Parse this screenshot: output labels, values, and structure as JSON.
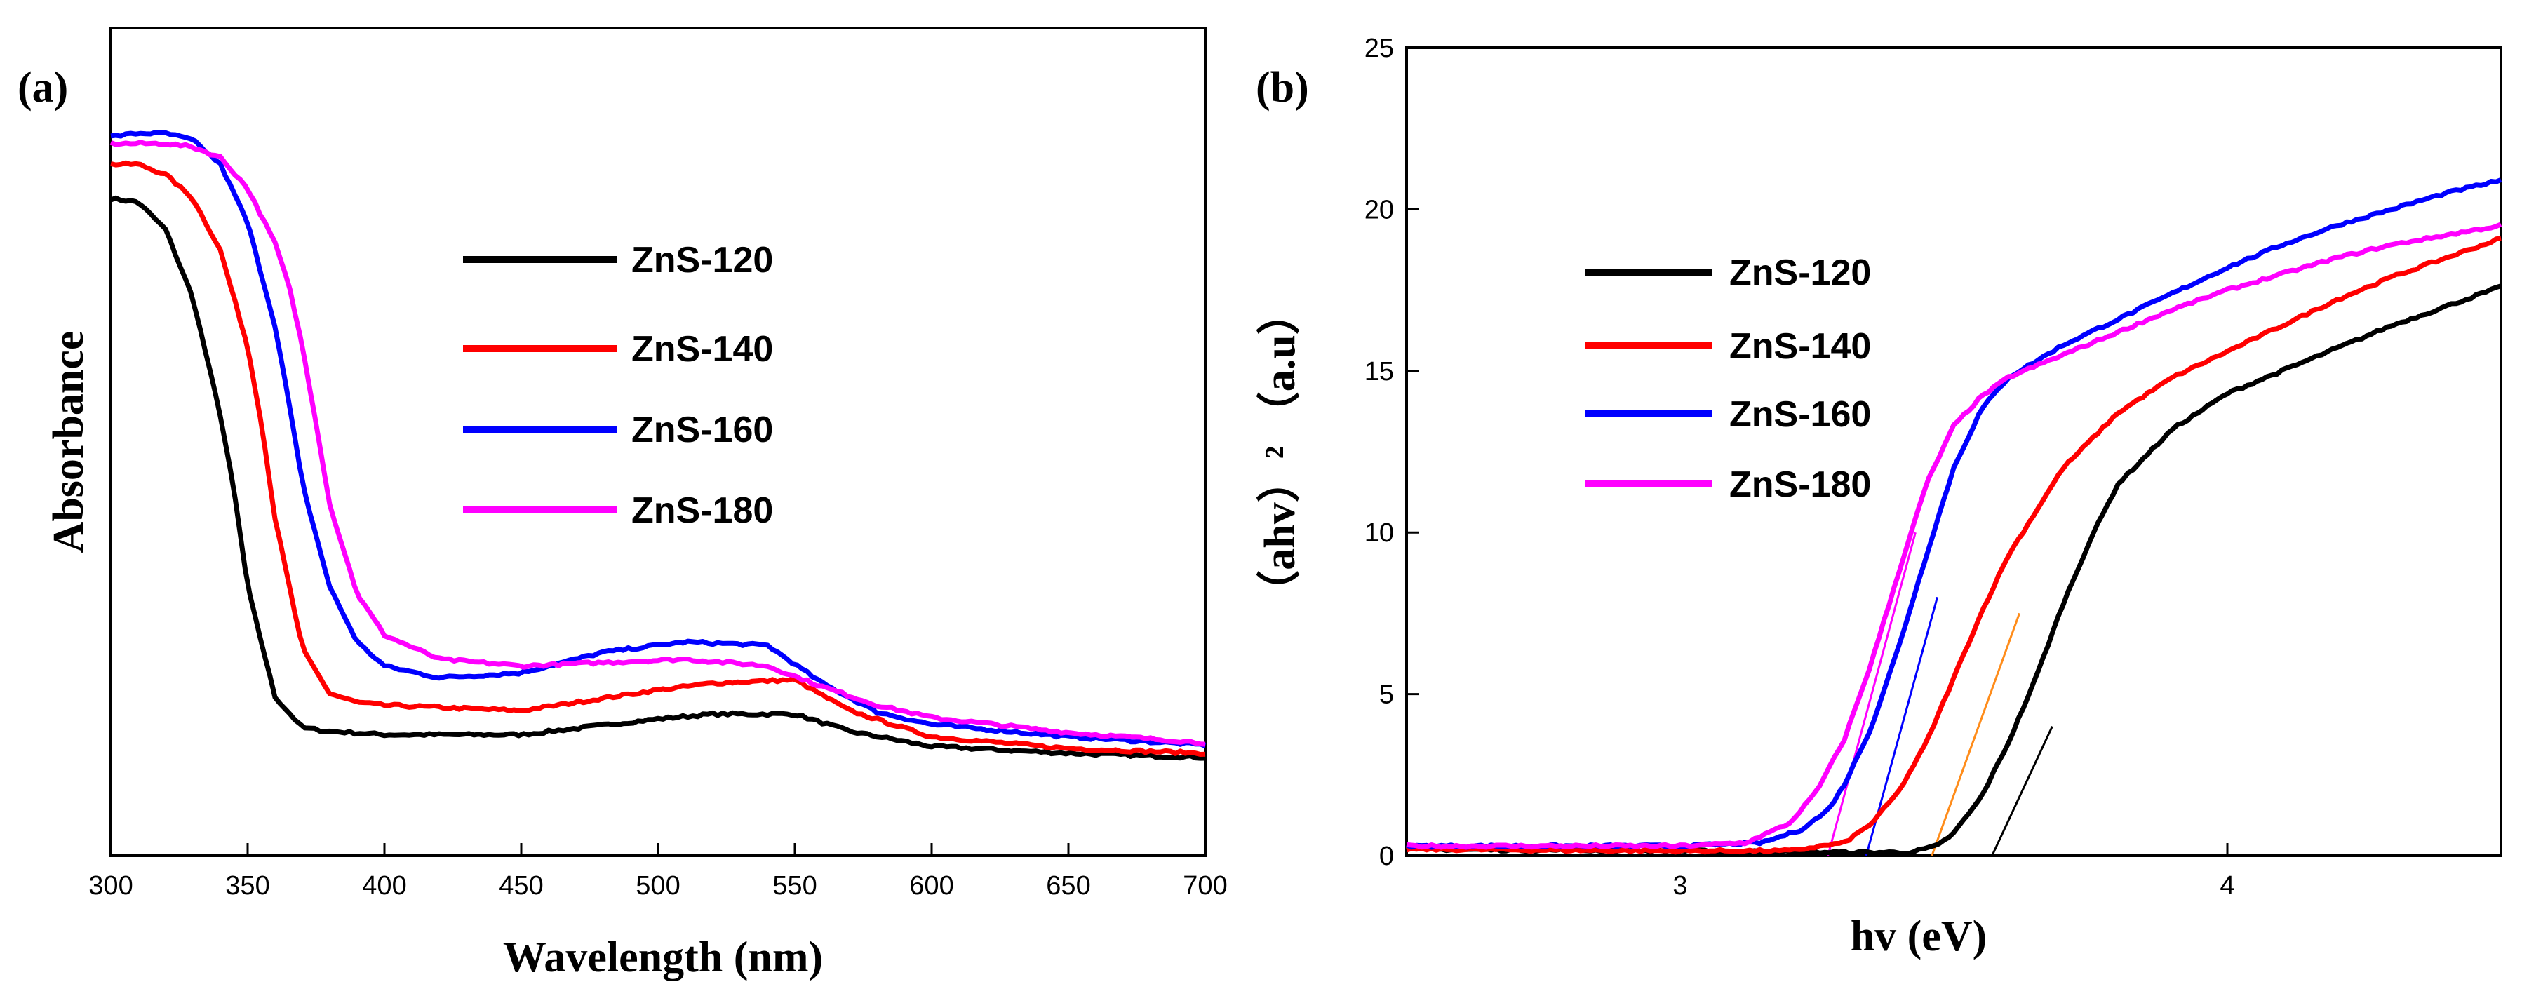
{
  "chart_data": [
    {
      "panel_label": "(a)",
      "type": "line",
      "xlabel": "Wavelength (nm)",
      "ylabel": "Absorbance",
      "xlim": [
        300,
        700
      ],
      "ylim": [
        0,
        1
      ],
      "xticks": [
        "300",
        "350",
        "400",
        "450",
        "500",
        "550",
        "600",
        "650",
        "700"
      ],
      "xtick_values": [
        300,
        350,
        400,
        450,
        500,
        550,
        600,
        650,
        700
      ],
      "legend_position": "upper-middle",
      "series": [
        {
          "name": "ZnS-120",
          "color": "#000000",
          "x": [
            300,
            310,
            320,
            330,
            340,
            345,
            350,
            360,
            370,
            380,
            400,
            450,
            500,
            520,
            550,
            570,
            600,
            650,
            700
          ],
          "y": [
            0.905,
            0.9,
            0.86,
            0.76,
            0.59,
            0.48,
            0.34,
            0.18,
            0.135,
            0.13,
            0.125,
            0.125,
            0.148,
            0.155,
            0.155,
            0.13,
            0.108,
            0.098,
            0.092
          ]
        },
        {
          "name": "ZnS-140",
          "color": "#ff0000",
          "x": [
            300,
            310,
            320,
            330,
            340,
            350,
            355,
            360,
            370,
            380,
            390,
            400,
            450,
            500,
            520,
            550,
            570,
            600,
            650,
            700
          ],
          "y": [
            0.955,
            0.955,
            0.94,
            0.905,
            0.83,
            0.69,
            0.58,
            0.44,
            0.25,
            0.185,
            0.172,
            0.168,
            0.16,
            0.19,
            0.2,
            0.205,
            0.16,
            0.122,
            0.105,
            0.098
          ]
        },
        {
          "name": "ZnS-160",
          "color": "#0000ff",
          "x": [
            300,
            310,
            320,
            330,
            340,
            350,
            360,
            365,
            370,
            380,
            390,
            400,
            420,
            450,
            480,
            510,
            540,
            560,
            580,
            600,
            650,
            700
          ],
          "y": [
            0.995,
            1.0,
            1.0,
            0.99,
            0.955,
            0.87,
            0.72,
            0.61,
            0.49,
            0.34,
            0.26,
            0.225,
            0.208,
            0.215,
            0.245,
            0.26,
            0.255,
            0.2,
            0.158,
            0.14,
            0.122,
            0.11
          ]
        },
        {
          "name": "ZnS-180",
          "color": "#ff00ff",
          "x": [
            300,
            310,
            320,
            330,
            340,
            350,
            360,
            365,
            370,
            375,
            380,
            390,
            400,
            420,
            450,
            480,
            510,
            540,
            560,
            580,
            600,
            650,
            700
          ],
          "y": [
            0.985,
            0.985,
            0.985,
            0.98,
            0.965,
            0.92,
            0.84,
            0.78,
            0.69,
            0.58,
            0.46,
            0.33,
            0.27,
            0.235,
            0.225,
            0.23,
            0.235,
            0.225,
            0.195,
            0.168,
            0.15,
            0.128,
            0.113
          ]
        }
      ]
    },
    {
      "panel_label": "(b)",
      "type": "line",
      "xlabel": "hv (eV)",
      "ylabel": "（ahv）² （a.u）",
      "xlim": [
        2.5,
        4.5
      ],
      "ylim": [
        0,
        25
      ],
      "xticks": [
        "3",
        "4"
      ],
      "xtick_values": [
        3,
        4
      ],
      "yticks": [
        "0",
        "5",
        "10",
        "15",
        "20",
        "25"
      ],
      "ytick_values": [
        0,
        5,
        10,
        15,
        20,
        25
      ],
      "legend_position": "middle-left",
      "series": [
        {
          "name": "ZnS-120",
          "color": "#000000",
          "x": [
            2.5,
            3.0,
            3.3,
            3.42,
            3.47,
            3.5,
            3.55,
            3.6,
            3.65,
            3.7,
            3.75,
            3.8,
            3.9,
            4.0,
            4.1,
            4.2,
            4.3,
            4.4,
            4.5
          ],
          "y": [
            0.2,
            0.15,
            0.1,
            0.1,
            0.3,
            0.7,
            1.8,
            3.5,
            5.5,
            7.8,
            9.8,
            11.5,
            13.2,
            14.3,
            15.0,
            15.7,
            16.4,
            17.0,
            17.6
          ]
        },
        {
          "name": "ZnS-140",
          "color": "#ff0000",
          "x": [
            2.5,
            3.0,
            3.2,
            3.3,
            3.35,
            3.4,
            3.45,
            3.5,
            3.55,
            3.6,
            3.7,
            3.8,
            3.9,
            4.0,
            4.1,
            4.2,
            4.3,
            4.4,
            4.5
          ],
          "y": [
            0.2,
            0.15,
            0.15,
            0.4,
            1.0,
            2.0,
            3.5,
            5.5,
            7.5,
            9.3,
            12.0,
            13.7,
            14.8,
            15.6,
            16.4,
            17.2,
            17.9,
            18.5,
            19.1
          ]
        },
        {
          "name": "ZnS-160",
          "color": "#0000ff",
          "x": [
            2.5,
            3.0,
            3.15,
            3.22,
            3.27,
            3.3,
            3.35,
            3.4,
            3.45,
            3.5,
            3.55,
            3.6,
            3.7,
            3.8,
            3.9,
            4.0,
            4.1,
            4.2,
            4.3,
            4.4,
            4.5
          ],
          "y": [
            0.3,
            0.3,
            0.4,
            0.8,
            1.4,
            2.2,
            4.0,
            6.5,
            9.3,
            12.0,
            13.8,
            14.8,
            15.8,
            16.6,
            17.4,
            18.2,
            18.9,
            19.5,
            20.0,
            20.5,
            20.9
          ]
        },
        {
          "name": "ZnS-180",
          "color": "#ff00ff",
          "x": [
            2.5,
            3.0,
            3.12,
            3.2,
            3.25,
            3.3,
            3.35,
            3.4,
            3.45,
            3.5,
            3.55,
            3.6,
            3.7,
            3.8,
            3.9,
            4.0,
            4.1,
            4.2,
            4.3,
            4.4,
            4.5
          ],
          "y": [
            0.3,
            0.3,
            0.4,
            1.0,
            2.0,
            3.6,
            6.0,
            8.8,
            11.5,
            13.3,
            14.2,
            14.8,
            15.5,
            16.2,
            16.9,
            17.5,
            18.0,
            18.5,
            18.9,
            19.2,
            19.5
          ]
        }
      ],
      "tangent_lines": [
        {
          "color": "#000000",
          "x": [
            3.57,
            3.68
          ],
          "y": [
            0,
            4.0
          ]
        },
        {
          "color": "#ff8c1a",
          "x": [
            3.46,
            3.62
          ],
          "y": [
            0,
            7.5
          ]
        },
        {
          "color": "#0000ff",
          "x": [
            3.34,
            3.47
          ],
          "y": [
            0,
            8.0
          ]
        },
        {
          "color": "#ff00ff",
          "x": [
            3.27,
            3.43
          ],
          "y": [
            0,
            10.0
          ]
        }
      ]
    }
  ]
}
